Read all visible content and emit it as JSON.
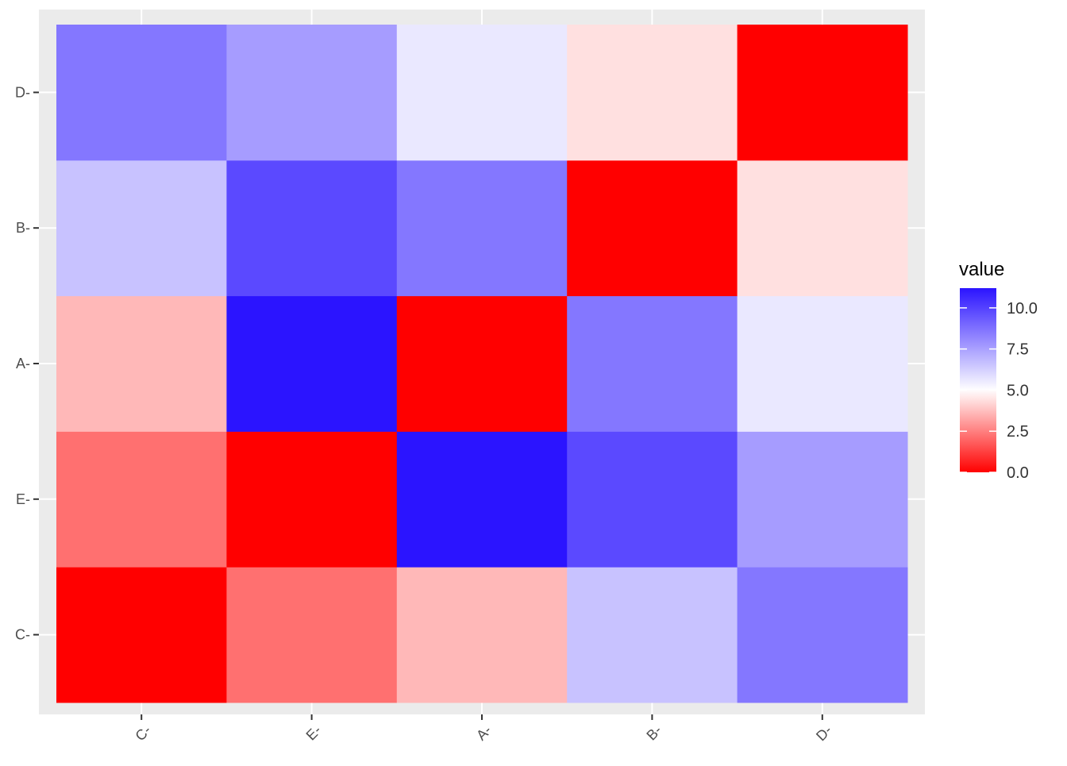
{
  "chart_data": {
    "type": "heatmap",
    "x_categories": [
      "C-",
      "E-",
      "A-",
      "B-",
      "D-"
    ],
    "y_categories": [
      "C-",
      "E-",
      "A-",
      "B-",
      "D-"
    ],
    "values": [
      [
        0.0,
        2.2,
        3.6,
        6.6,
        8.6
      ],
      [
        2.2,
        0.0,
        11.2,
        9.8,
        7.6
      ],
      [
        3.6,
        11.2,
        0.0,
        8.6,
        5.6
      ],
      [
        6.6,
        9.8,
        8.6,
        0.0,
        4.4
      ],
      [
        8.6,
        7.6,
        5.6,
        4.4,
        0.0
      ]
    ],
    "xlabel": "",
    "ylabel": "",
    "x_tick_rotation": "45deg",
    "grid": true,
    "legend": {
      "title": "value",
      "position": "right",
      "ticks": [
        0.0,
        2.5,
        5.0,
        7.5,
        10.0
      ],
      "tick_labels": [
        "0.0",
        "2.5",
        "5.0",
        "7.5",
        "10.0"
      ],
      "range": [
        0.0,
        11.2
      ]
    },
    "colors": {
      "low": "#FF0000",
      "mid": "#FFFFFF",
      "high": "#2B14FF",
      "midpoint": 5.0,
      "panel_background": "#EBEBEB",
      "grid_line": "#FFFFFF",
      "axis_text": "#4D4D4D",
      "tick_mark": "#333333"
    }
  }
}
